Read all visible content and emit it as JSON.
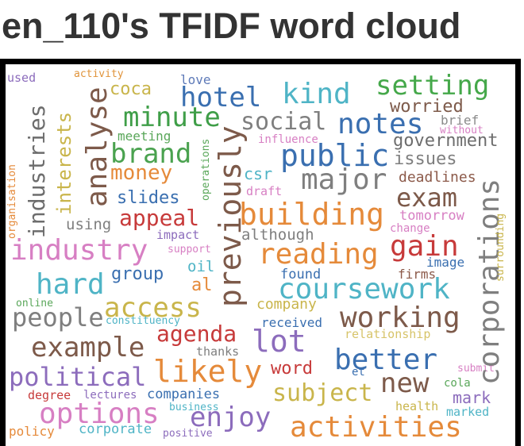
{
  "title": "en_110's TFIDF word cloud",
  "words": [
    {
      "text": "used",
      "color": "#8c6cbc"
    },
    {
      "text": "activity",
      "color": "#e0933a"
    },
    {
      "text": "coca",
      "color": "#c9b54b"
    },
    {
      "text": "love",
      "color": "#5e7ab8"
    },
    {
      "text": "hotel",
      "color": "#3a6fb0"
    },
    {
      "text": "kind",
      "color": "#4fb4c6"
    },
    {
      "text": "setting",
      "color": "#45a84a"
    },
    {
      "text": "worried",
      "color": "#7d5a4a"
    },
    {
      "text": "brief",
      "color": "#8a8a8a"
    },
    {
      "text": "without",
      "color": "#d77fc3"
    },
    {
      "text": "minute",
      "color": "#3f9e48"
    },
    {
      "text": "social",
      "color": "#7f7f7f"
    },
    {
      "text": "notes",
      "color": "#3a6fb0"
    },
    {
      "text": "meeting",
      "color": "#5aa75a"
    },
    {
      "text": "influence",
      "color": "#d77fc3"
    },
    {
      "text": "government",
      "color": "#6d6d6d"
    },
    {
      "text": "brand",
      "color": "#4aa24f"
    },
    {
      "text": "public",
      "color": "#3a6fb0"
    },
    {
      "text": "issues",
      "color": "#7f7f7f"
    },
    {
      "text": "money",
      "color": "#e58a3a"
    },
    {
      "text": "csr",
      "color": "#4fb4c6"
    },
    {
      "text": "major",
      "color": "#7f7f7f"
    },
    {
      "text": "deadlines",
      "color": "#8c5a4a"
    },
    {
      "text": "draft",
      "color": "#d77fc3"
    },
    {
      "text": "exam",
      "color": "#7d5a4a"
    },
    {
      "text": "slides",
      "color": "#3a6fb0"
    },
    {
      "text": "tomorrow",
      "color": "#d77fc3"
    },
    {
      "text": "appeal",
      "color": "#c73a3a"
    },
    {
      "text": "building",
      "color": "#e58a3a"
    },
    {
      "text": "using",
      "color": "#7f7f7f"
    },
    {
      "text": "change",
      "color": "#d77fc3"
    },
    {
      "text": "gain",
      "color": "#c73a3a"
    },
    {
      "text": "impact",
      "color": "#8c6cbc"
    },
    {
      "text": "although",
      "color": "#7f7f7f"
    },
    {
      "text": "support",
      "color": "#d77fc3"
    },
    {
      "text": "industry",
      "color": "#d77fc3"
    },
    {
      "text": "reading",
      "color": "#e58a3a"
    },
    {
      "text": "image",
      "color": "#3a6fb0"
    },
    {
      "text": "oil",
      "color": "#4fb4c6"
    },
    {
      "text": "firms",
      "color": "#8c5a4a"
    },
    {
      "text": "group",
      "color": "#3a6fb0"
    },
    {
      "text": "found",
      "color": "#3a6fb0"
    },
    {
      "text": "hard",
      "color": "#4fb4c6"
    },
    {
      "text": "al",
      "color": "#e58a3a"
    },
    {
      "text": "coursework",
      "color": "#4fb4c6"
    },
    {
      "text": "online",
      "color": "#5aa75a"
    },
    {
      "text": "company",
      "color": "#c9b54b"
    },
    {
      "text": "people",
      "color": "#7f7f7f"
    },
    {
      "text": "access",
      "color": "#c9b54b"
    },
    {
      "text": "working",
      "color": "#7d5a4a"
    },
    {
      "text": "constituency",
      "color": "#4fb4c6"
    },
    {
      "text": "received",
      "color": "#3a6fb0"
    },
    {
      "text": "relationship",
      "color": "#d7c46a"
    },
    {
      "text": "agenda",
      "color": "#c73a3a"
    },
    {
      "text": "lot",
      "color": "#8c6cbc"
    },
    {
      "text": "example",
      "color": "#7d5a4a"
    },
    {
      "text": "thanks",
      "color": "#7f7f7f"
    },
    {
      "text": "better",
      "color": "#3a6fb0"
    },
    {
      "text": "word",
      "color": "#c73a3a"
    },
    {
      "text": "submit",
      "color": "#d77fc3"
    },
    {
      "text": "likely",
      "color": "#e58a3a"
    },
    {
      "text": "et",
      "color": "#3a6fb0"
    },
    {
      "text": "political",
      "color": "#8c6cbc"
    },
    {
      "text": "new",
      "color": "#7d5a4a"
    },
    {
      "text": "cola",
      "color": "#5aa75a"
    },
    {
      "text": "subject",
      "color": "#c9b54b"
    },
    {
      "text": "degree",
      "color": "#c73a3a"
    },
    {
      "text": "lectures",
      "color": "#8c6cbc"
    },
    {
      "text": "companies",
      "color": "#3a6fb0"
    },
    {
      "text": "mark",
      "color": "#8c6cbc"
    },
    {
      "text": "health",
      "color": "#c9b54b"
    },
    {
      "text": "business",
      "color": "#4fb4c6"
    },
    {
      "text": "marked",
      "color": "#4fb4c6"
    },
    {
      "text": "options",
      "color": "#d77fc3"
    },
    {
      "text": "enjoy",
      "color": "#8c6cbc"
    },
    {
      "text": "activities",
      "color": "#e58a3a"
    },
    {
      "text": "policy",
      "color": "#e58a3a"
    },
    {
      "text": "corporate",
      "color": "#4fb4c6"
    },
    {
      "text": "positive",
      "color": "#8c6cbc"
    },
    {
      "text": "industries",
      "color": "#6d6d6d"
    },
    {
      "text": "interests",
      "color": "#c9b54b"
    },
    {
      "text": "analyse",
      "color": "#7d5a4a"
    },
    {
      "text": "organisation",
      "color": "#e58a3a"
    },
    {
      "text": "operations",
      "color": "#5aa75a"
    },
    {
      "text": "previously",
      "color": "#7d5a4a"
    },
    {
      "text": "corporations",
      "color": "#7f7f7f"
    },
    {
      "text": "surrounding",
      "color": "#c9b54b"
    }
  ]
}
